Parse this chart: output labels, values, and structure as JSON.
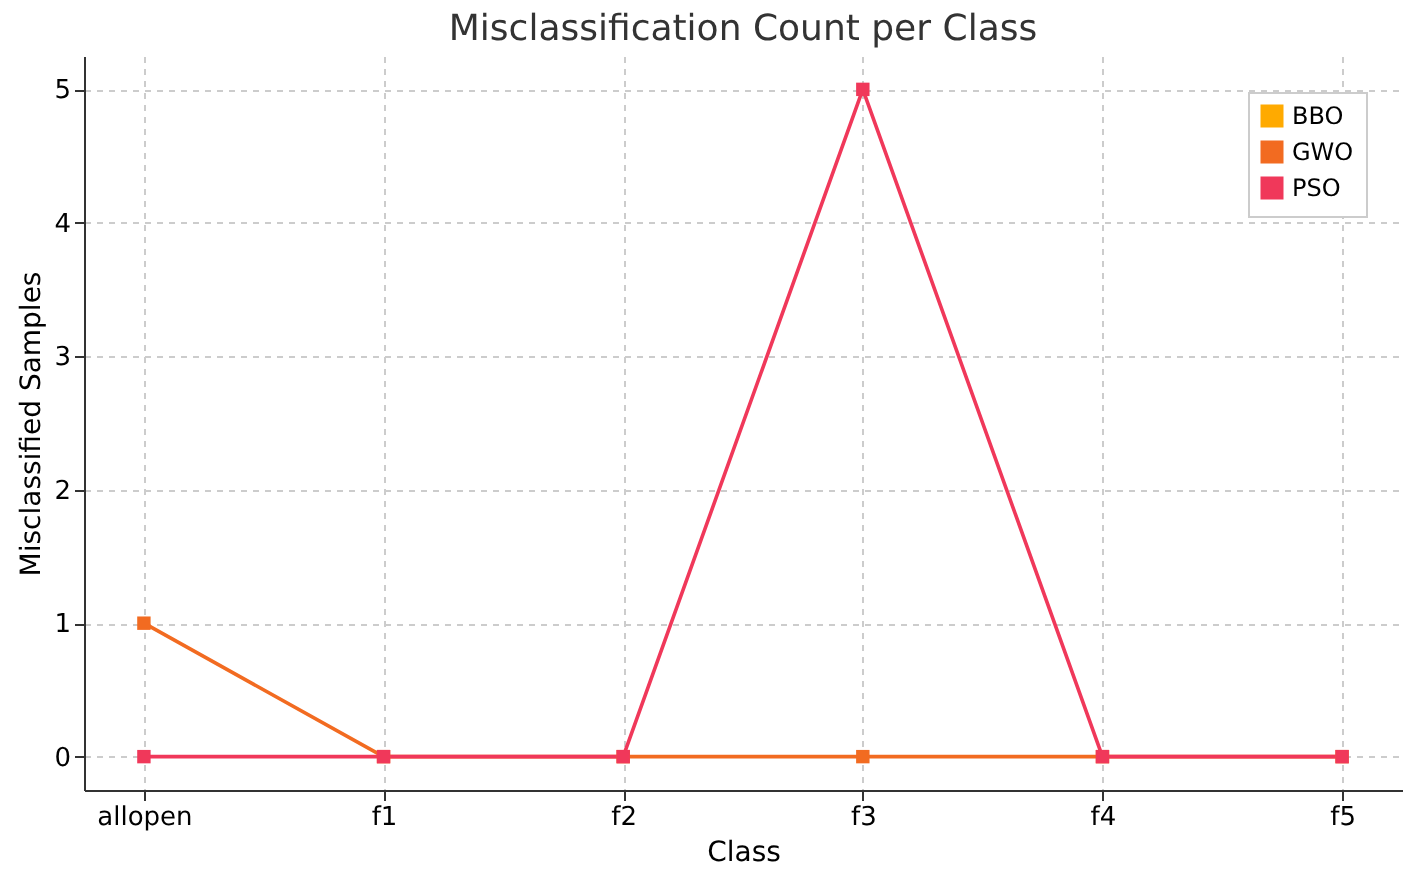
{
  "chart_data": {
    "type": "line",
    "title": "Misclassification Count per Class",
    "xlabel": "Class",
    "ylabel": "Misclassified Samples",
    "categories": [
      "allopen",
      "f1",
      "f2",
      "f3",
      "f4",
      "f5"
    ],
    "series": [
      {
        "name": "BBO",
        "color": "#ffaa00",
        "values": [
          null,
          null,
          null,
          null,
          null,
          null
        ]
      },
      {
        "name": "GWO",
        "color": "#f26b21",
        "values": [
          1,
          0,
          0,
          0,
          0,
          0
        ]
      },
      {
        "name": "PSO",
        "color": "#f0385a",
        "values": [
          0,
          0,
          0,
          5,
          0,
          0
        ]
      }
    ],
    "ylim": [
      -0.25,
      5.25
    ],
    "yticks": [
      0,
      1,
      2,
      3,
      4,
      5
    ],
    "grid": true,
    "legend": "top right",
    "marker": "square",
    "line_style": "solid"
  }
}
